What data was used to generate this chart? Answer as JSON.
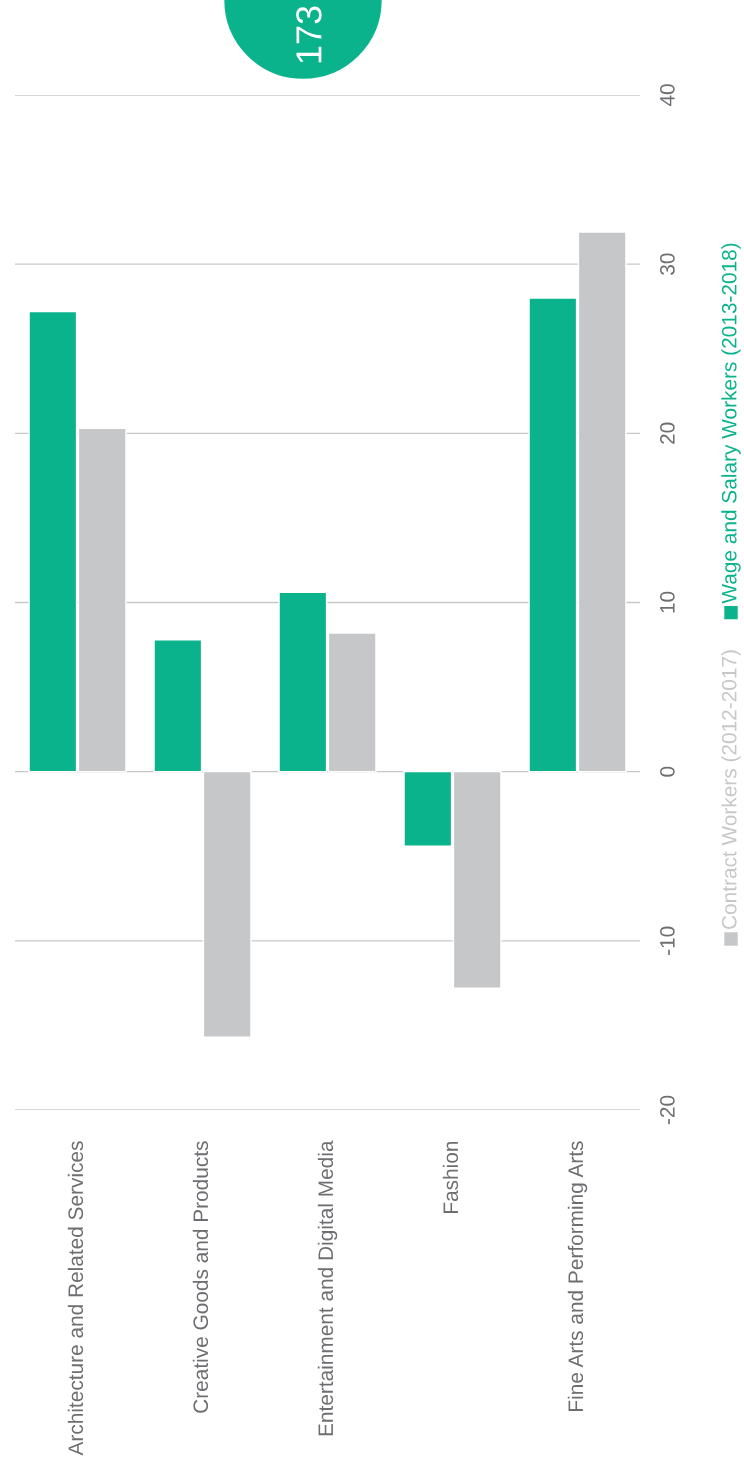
{
  "chart_data": {
    "type": "bar",
    "categories": [
      "Architecture and Related Services",
      "Creative Goods and Products",
      "Entertainment and Digital Media",
      "Fashion",
      "Fine Arts and Performing Arts"
    ],
    "series": [
      {
        "name": "Wage and Salary Workers (2013-2018)",
        "color": "#0bb38c",
        "values": [
          27.2,
          7.8,
          10.6,
          -4.4,
          28.0
        ]
      },
      {
        "name": "Contract Workers (2012-2017)",
        "color": "#c6c7c9",
        "values": [
          20.3,
          -15.7,
          8.2,
          -12.8,
          31.9
        ]
      }
    ],
    "ylim": [
      -20,
      40
    ],
    "yticks": [
      -20,
      -10,
      0,
      10,
      20,
      30,
      40
    ],
    "grid": "y",
    "legend": "right",
    "annotations": [
      "173"
    ]
  }
}
